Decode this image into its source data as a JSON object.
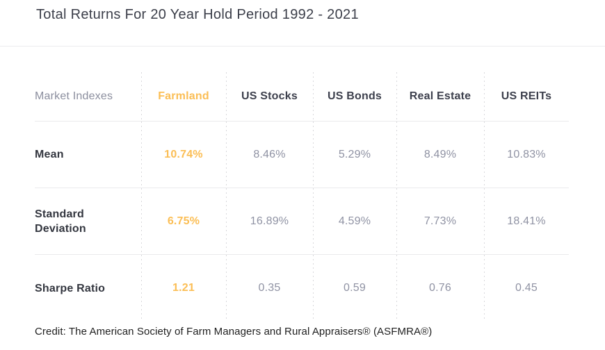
{
  "title": "Total Returns For 20 Year Hold Period 1992 - 2021",
  "credit": "Credit: The American Society of Farm Managers and Rural Appraisers® (ASFMRA®)",
  "colors": {
    "accent_orange": "#FBBE55",
    "header_text": "#3D404D",
    "row_label_text": "#33363F",
    "muted_value_text": "#8F92A3",
    "corner_label_text": "#8B8E9E",
    "title_text": "#3B3E49",
    "solid_divider": "#EAEAEC",
    "dashed_divider": "#D8D8DB",
    "credit_text": "#1E1E1E",
    "background": "#FFFFFF"
  },
  "chart_data": {
    "type": "table",
    "title": "Total Returns For 20 Year Hold Period 1992 - 2021",
    "corner_label": "Market Indexes",
    "columns": [
      "Farmland",
      "US Stocks",
      "US Bonds",
      "Real Estate",
      "US REITs"
    ],
    "highlight_column": "Farmland",
    "rows": [
      {
        "label": "Mean",
        "values": [
          "10.74%",
          "8.46%",
          "5.29%",
          "8.49%",
          "10.83%"
        ]
      },
      {
        "label": "Standard Deviation",
        "values": [
          "6.75%",
          "16.89%",
          "4.59%",
          "7.73%",
          "18.41%"
        ]
      },
      {
        "label": "Sharpe Ratio",
        "values": [
          "1.21",
          "0.35",
          "0.59",
          "0.76",
          "0.45"
        ]
      }
    ],
    "layout": {
      "grid": "horizontal solid row dividers, dashed vertical column separators",
      "highlight_style": "Farmland column shown in bold orange"
    }
  }
}
